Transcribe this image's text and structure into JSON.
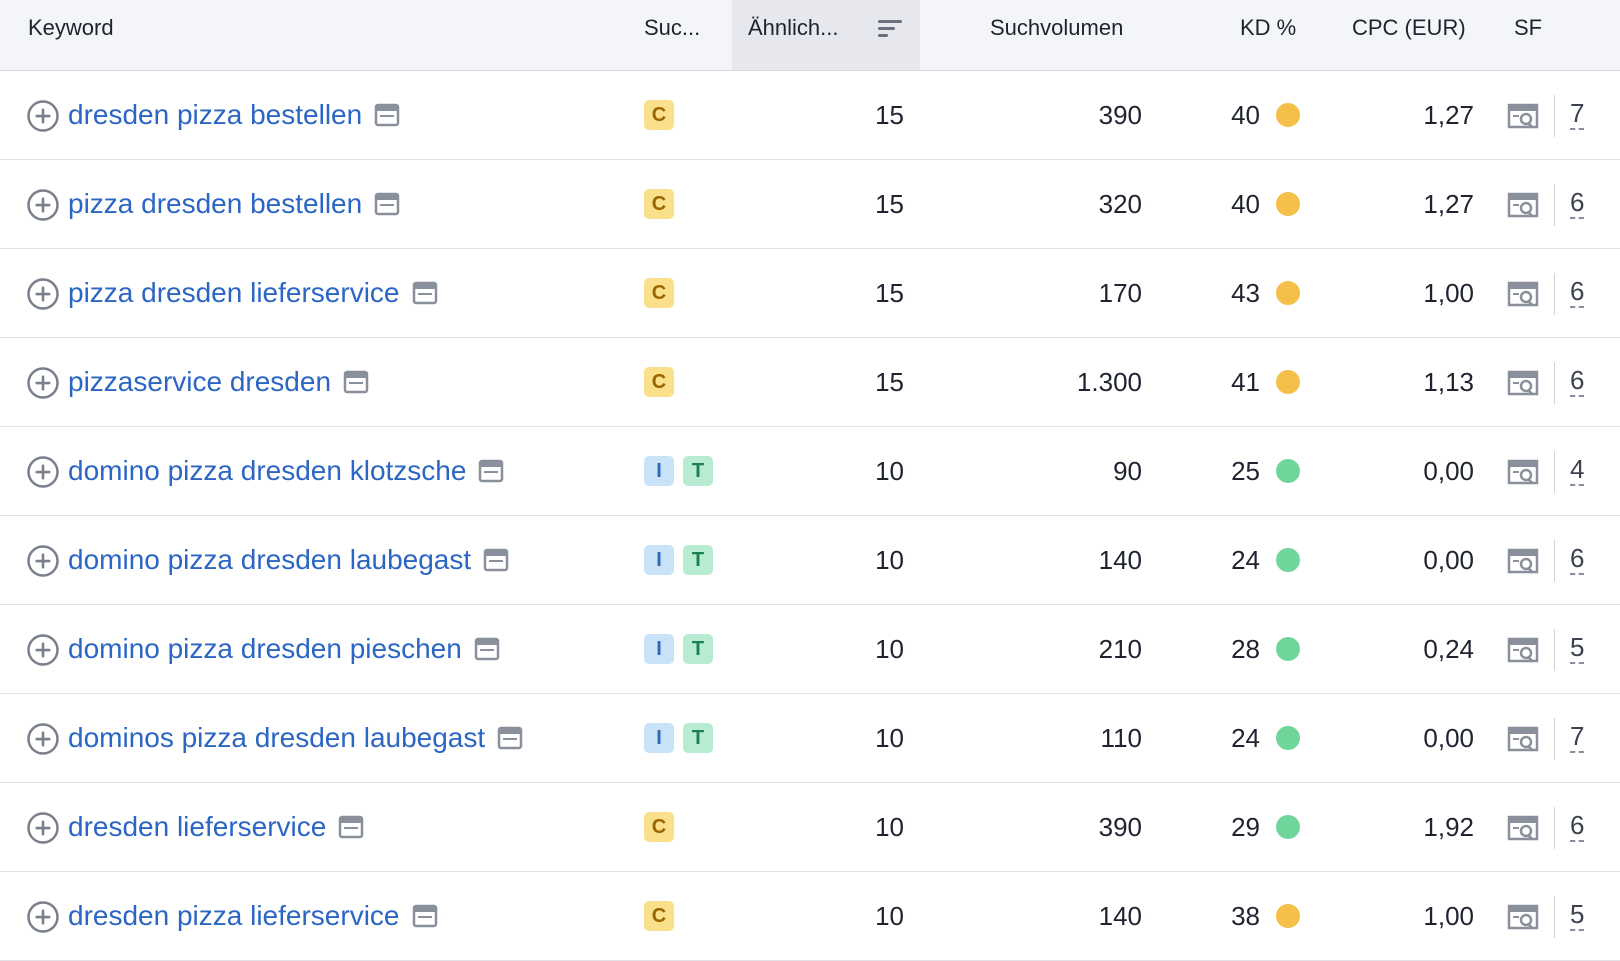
{
  "header": {
    "keyword": "Keyword",
    "intent": "Suc...",
    "similarity": "Ähnlich...",
    "volume": "Suchvolumen",
    "kd": "KD %",
    "cpc": "CPC (EUR)",
    "sf": "SF"
  },
  "colors": {
    "kd_yellow": "#f5c04a",
    "kd_green": "#6fd59b",
    "link_blue": "#2c66c4"
  },
  "icons": {
    "add": "plus-circle-icon",
    "serp": "serp-window-icon",
    "sort": "sort-desc-icon",
    "sf": "serp-feature-icon"
  },
  "rows": [
    {
      "keyword": "dresden pizza bestellen",
      "intents": [
        "C"
      ],
      "similarity": "15",
      "volume": "390",
      "kd": "40",
      "kd_color": "yellow",
      "cpc": "1,27",
      "sf": "7"
    },
    {
      "keyword": "pizza dresden bestellen",
      "intents": [
        "C"
      ],
      "similarity": "15",
      "volume": "320",
      "kd": "40",
      "kd_color": "yellow",
      "cpc": "1,27",
      "sf": "6"
    },
    {
      "keyword": "pizza dresden lieferservice",
      "intents": [
        "C"
      ],
      "similarity": "15",
      "volume": "170",
      "kd": "43",
      "kd_color": "yellow",
      "cpc": "1,00",
      "sf": "6"
    },
    {
      "keyword": "pizzaservice dresden",
      "intents": [
        "C"
      ],
      "similarity": "15",
      "volume": "1.300",
      "kd": "41",
      "kd_color": "yellow",
      "cpc": "1,13",
      "sf": "6"
    },
    {
      "keyword": "domino pizza dresden klotzsche",
      "intents": [
        "I",
        "T"
      ],
      "similarity": "10",
      "volume": "90",
      "kd": "25",
      "kd_color": "green",
      "cpc": "0,00",
      "sf": "4"
    },
    {
      "keyword": "domino pizza dresden laubegast",
      "intents": [
        "I",
        "T"
      ],
      "similarity": "10",
      "volume": "140",
      "kd": "24",
      "kd_color": "green",
      "cpc": "0,00",
      "sf": "6"
    },
    {
      "keyword": "domino pizza dresden pieschen",
      "intents": [
        "I",
        "T"
      ],
      "similarity": "10",
      "volume": "210",
      "kd": "28",
      "kd_color": "green",
      "cpc": "0,24",
      "sf": "5"
    },
    {
      "keyword": "dominos pizza dresden laubegast",
      "intents": [
        "I",
        "T"
      ],
      "similarity": "10",
      "volume": "110",
      "kd": "24",
      "kd_color": "green",
      "cpc": "0,00",
      "sf": "7"
    },
    {
      "keyword": "dresden lieferservice",
      "intents": [
        "C"
      ],
      "similarity": "10",
      "volume": "390",
      "kd": "29",
      "kd_color": "green",
      "cpc": "1,92",
      "sf": "6"
    },
    {
      "keyword": "dresden pizza lieferservice",
      "intents": [
        "C"
      ],
      "similarity": "10",
      "volume": "140",
      "kd": "38",
      "kd_color": "yellow",
      "cpc": "1,00",
      "sf": "5"
    }
  ]
}
